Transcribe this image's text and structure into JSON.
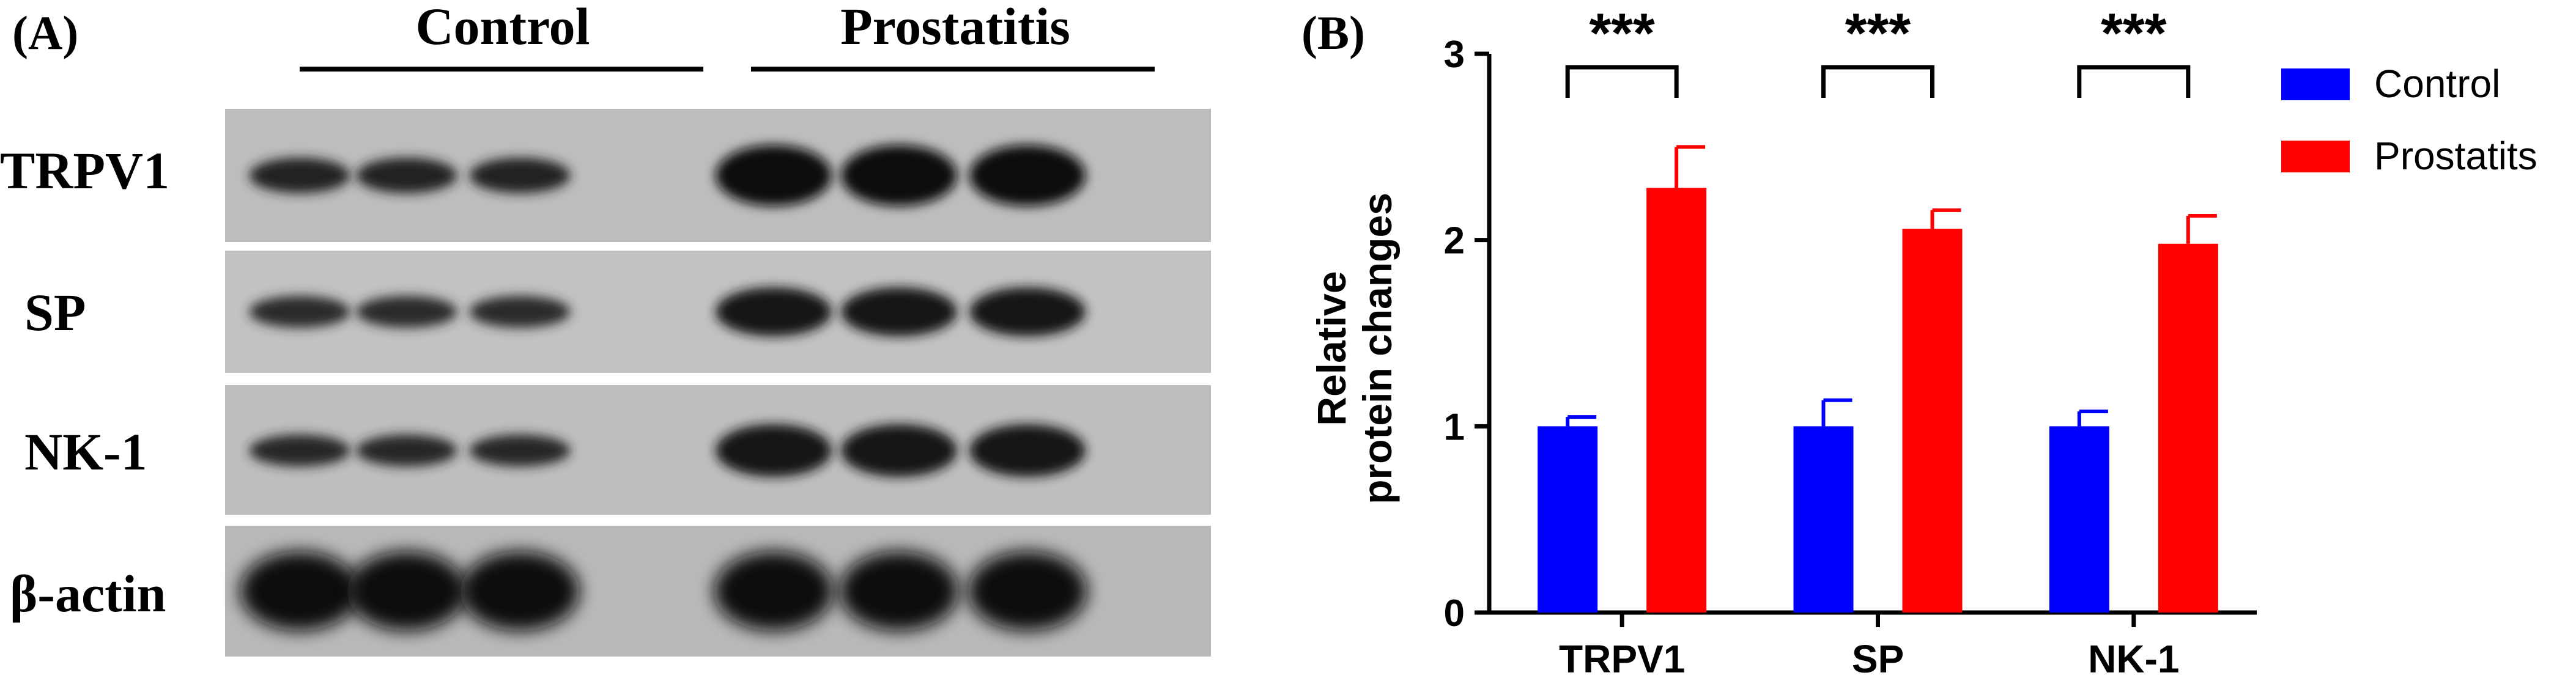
{
  "panel_a": {
    "label": "(A)",
    "groups": [
      "Control",
      "Prostatitis"
    ],
    "rows": [
      "TRPV1",
      "SP",
      "NK-1",
      "β-actin"
    ]
  },
  "chart_data": {
    "type": "bar",
    "panel_label": "(B)",
    "title": "",
    "categories": [
      "TRPV1",
      "SP",
      "NK-1"
    ],
    "series": [
      {
        "name": "Control",
        "color": "#0000ff",
        "values": [
          1.0,
          1.0,
          1.0
        ],
        "error": [
          0.05,
          0.14,
          0.08
        ]
      },
      {
        "name": "Prostatits",
        "color": "#ff0000",
        "values": [
          2.28,
          2.06,
          1.98
        ],
        "error": [
          0.22,
          0.1,
          0.15
        ]
      }
    ],
    "xlabel": "",
    "ylabel": [
      "Relative",
      "protein changes"
    ],
    "ylim": [
      0,
      3
    ],
    "yticks": [
      "0",
      "1",
      "2",
      "3"
    ],
    "significance": [
      "***",
      "***",
      "***"
    ],
    "grid": false,
    "legend_position": "right"
  }
}
